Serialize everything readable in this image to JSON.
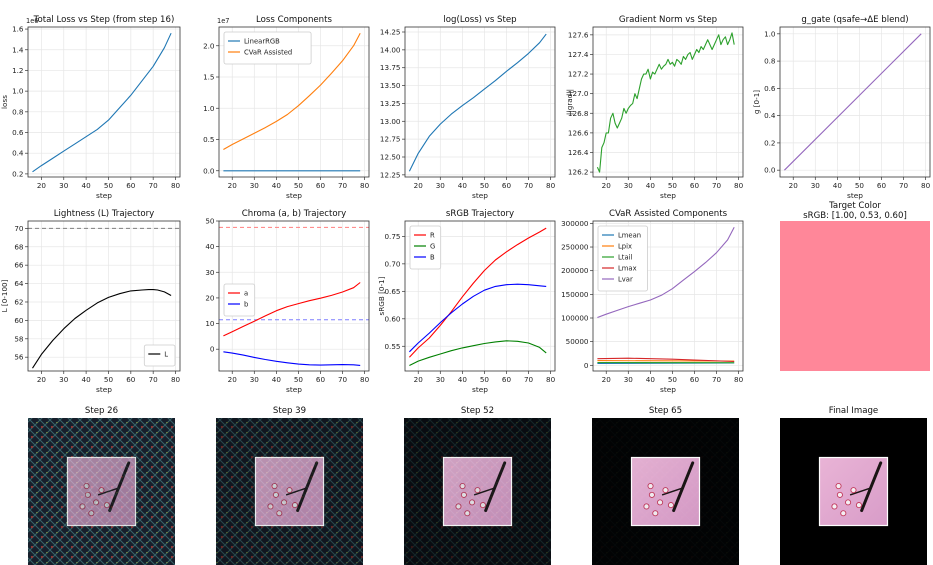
{
  "figure": {
    "plots": [
      {
        "id": "total-loss",
        "title": "Total Loss vs Step (from step 16)",
        "xlabel": "step",
        "ylabel": "loss",
        "xlim": [
          14,
          82
        ],
        "ylim": [
          0.17,
          1.62
        ],
        "xticks": [
          20,
          30,
          40,
          50,
          60,
          70,
          80
        ],
        "yticks": [
          0.2,
          0.4,
          0.6,
          0.8,
          1.0,
          1.2,
          1.4,
          1.6
        ],
        "ytick_labels": [
          "0.2",
          "0.4",
          "0.6",
          "0.8",
          "1.0",
          "1.2",
          "1.4",
          "1.6"
        ],
        "offset_label": "1e6",
        "legend": null,
        "series": [
          {
            "name": "loss",
            "color": "#1f77b4",
            "x": [
              16,
              20,
              25,
              30,
              35,
              40,
              45,
              50,
              55,
              60,
              65,
              70,
              75,
              78
            ],
            "y": [
              0.22,
              0.28,
              0.35,
              0.42,
              0.49,
              0.56,
              0.63,
              0.72,
              0.84,
              0.96,
              1.1,
              1.24,
              1.42,
              1.56
            ]
          }
        ],
        "hlines": []
      },
      {
        "id": "loss-components",
        "title": "Loss Components",
        "xlabel": "step",
        "ylabel": "",
        "xlim": [
          14,
          82
        ],
        "ylim": [
          -0.1,
          2.3
        ],
        "xticks": [
          20,
          30,
          40,
          50,
          60,
          70,
          80
        ],
        "yticks": [
          0.0,
          0.5,
          1.0,
          1.5,
          2.0
        ],
        "ytick_labels": [
          "0.0",
          "0.5",
          "1.0",
          "1.5",
          "2.0"
        ],
        "offset_label": "1e7",
        "legend": "top-left",
        "series": [
          {
            "name": "LinearRGB",
            "color": "#1f77b4",
            "x": [
              16,
              78
            ],
            "y": [
              0.0,
              0.0
            ]
          },
          {
            "name": "CVaR Assisted",
            "color": "#ff7f0e",
            "x": [
              16,
              20,
              25,
              30,
              35,
              40,
              45,
              50,
              55,
              60,
              65,
              70,
              75,
              78
            ],
            "y": [
              0.34,
              0.42,
              0.51,
              0.6,
              0.69,
              0.79,
              0.9,
              1.04,
              1.2,
              1.37,
              1.56,
              1.76,
              2.0,
              2.2
            ]
          }
        ],
        "hlines": []
      },
      {
        "id": "log-loss",
        "title": "log(Loss) vs Step",
        "xlabel": "step",
        "ylabel": "",
        "xlim": [
          14,
          82
        ],
        "ylim": [
          12.22,
          14.32
        ],
        "xticks": [
          20,
          30,
          40,
          50,
          60,
          70,
          80
        ],
        "yticks": [
          12.25,
          12.5,
          12.75,
          13.0,
          13.25,
          13.5,
          13.75,
          14.0,
          14.25
        ],
        "ytick_labels": [
          "12.25",
          "12.50",
          "12.75",
          "13.00",
          "13.25",
          "13.50",
          "13.75",
          "14.00",
          "14.25"
        ],
        "offset_label": "",
        "legend": null,
        "series": [
          {
            "name": "log loss",
            "color": "#1f77b4",
            "x": [
              16,
              20,
              25,
              30,
              35,
              40,
              45,
              50,
              55,
              60,
              65,
              70,
              75,
              78
            ],
            "y": [
              12.3,
              12.55,
              12.79,
              12.96,
              13.1,
              13.22,
              13.33,
              13.45,
              13.57,
              13.7,
              13.82,
              13.95,
              14.1,
              14.22
            ]
          }
        ],
        "hlines": []
      },
      {
        "id": "grad-norm",
        "title": "Gradient Norm vs Step",
        "xlabel": "step",
        "ylabel": "||grad||",
        "xlim": [
          14,
          82
        ],
        "ylim": [
          126.15,
          127.68
        ],
        "xticks": [
          20,
          30,
          40,
          50,
          60,
          70,
          80
        ],
        "yticks": [
          126.2,
          126.4,
          126.6,
          126.8,
          127.0,
          127.2,
          127.4,
          127.6
        ],
        "ytick_labels": [
          "126.2",
          "126.4",
          "126.6",
          "126.8",
          "127.0",
          "127.2",
          "127.4",
          "127.6"
        ],
        "offset_label": "",
        "legend": null,
        "series": [
          {
            "name": "grad norm",
            "color": "#2ca02c",
            "x": [
              16,
              17,
              18,
              19,
              20,
              21,
              22,
              23,
              24,
              25,
              26,
              27,
              28,
              29,
              30,
              31,
              32,
              33,
              34,
              35,
              36,
              37,
              38,
              39,
              40,
              41,
              42,
              43,
              44,
              45,
              46,
              47,
              48,
              49,
              50,
              51,
              52,
              53,
              54,
              55,
              56,
              57,
              58,
              59,
              60,
              61,
              62,
              63,
              64,
              65,
              66,
              67,
              68,
              69,
              70,
              71,
              72,
              73,
              74,
              75,
              76,
              77,
              78
            ],
            "y": [
              126.25,
              126.2,
              126.45,
              126.5,
              126.6,
              126.6,
              126.75,
              126.8,
              126.7,
              126.65,
              126.7,
              126.75,
              126.85,
              126.8,
              126.85,
              126.88,
              126.9,
              127.0,
              126.95,
              127.05,
              127.15,
              127.2,
              127.2,
              127.25,
              127.15,
              127.22,
              127.2,
              127.25,
              127.3,
              127.25,
              127.28,
              127.3,
              127.35,
              127.3,
              127.32,
              127.28,
              127.35,
              127.33,
              127.3,
              127.38,
              127.35,
              127.4,
              127.42,
              127.35,
              127.4,
              127.45,
              127.42,
              127.48,
              127.45,
              127.5,
              127.55,
              127.5,
              127.45,
              127.5,
              127.55,
              127.6,
              127.5,
              127.55,
              127.58,
              127.5,
              127.55,
              127.62,
              127.5
            ]
          }
        ],
        "hlines": []
      },
      {
        "id": "g-gate",
        "title": "g_gate (qsafe→ΔE blend)",
        "xlabel": "step",
        "ylabel": "g [0-1]",
        "xlim": [
          14,
          82
        ],
        "ylim": [
          -0.05,
          1.05
        ],
        "xticks": [
          20,
          30,
          40,
          50,
          60,
          70,
          80
        ],
        "yticks": [
          0.0,
          0.2,
          0.4,
          0.6,
          0.8,
          1.0
        ],
        "ytick_labels": [
          "0.0",
          "0.2",
          "0.4",
          "0.6",
          "0.8",
          "1.0"
        ],
        "offset_label": "",
        "legend": null,
        "series": [
          {
            "name": "g_gate",
            "color": "#9467bd",
            "x": [
              16,
              78
            ],
            "y": [
              0.0,
              1.0
            ]
          }
        ],
        "hlines": []
      },
      {
        "id": "lightness",
        "title": "Lightness (L) Trajectory",
        "xlabel": "step",
        "ylabel": "L [0-100]",
        "xlim": [
          14,
          82
        ],
        "ylim": [
          54.5,
          70.8
        ],
        "xticks": [
          20,
          30,
          40,
          50,
          60,
          70,
          80
        ],
        "yticks": [
          56,
          58,
          60,
          62,
          64,
          66,
          68,
          70
        ],
        "ytick_labels": [
          "56",
          "58",
          "60",
          "62",
          "64",
          "66",
          "68",
          "70"
        ],
        "offset_label": "",
        "legend": "bottom-right",
        "series": [
          {
            "name": "L",
            "color": "#000000",
            "x": [
              16,
              20,
              25,
              30,
              35,
              40,
              45,
              50,
              55,
              60,
              65,
              68,
              70,
              72,
              75,
              78
            ],
            "y": [
              54.8,
              56.3,
              57.8,
              59.1,
              60.2,
              61.1,
              61.9,
              62.5,
              62.9,
              63.2,
              63.3,
              63.35,
              63.35,
              63.3,
              63.1,
              62.7
            ]
          }
        ],
        "hlines": [
          {
            "y": 70,
            "color": "#7f7f7f"
          }
        ]
      },
      {
        "id": "chroma",
        "title": "Chroma (a, b) Trajectory",
        "xlabel": "step",
        "ylabel": "",
        "xlim": [
          14,
          82
        ],
        "ylim": [
          -8.5,
          50
        ],
        "xticks": [
          20,
          30,
          40,
          50,
          60,
          70,
          80
        ],
        "yticks": [
          0,
          10,
          20,
          30,
          40,
          50
        ],
        "ytick_labels": [
          "0",
          "10",
          "20",
          "30",
          "40",
          "50"
        ],
        "offset_label": "",
        "legend": "mid-left",
        "series": [
          {
            "name": "a",
            "color": "#ff0000",
            "x": [
              16,
              20,
              25,
              30,
              35,
              40,
              45,
              50,
              55,
              60,
              65,
              70,
              75,
              78
            ],
            "y": [
              5.2,
              6.8,
              8.9,
              10.9,
              13.0,
              15.0,
              16.6,
              17.8,
              18.9,
              19.9,
              21.0,
              22.3,
              24.0,
              26.0
            ]
          },
          {
            "name": "b",
            "color": "#0000ff",
            "x": [
              16,
              20,
              25,
              30,
              35,
              40,
              45,
              50,
              55,
              60,
              65,
              70,
              75,
              78
            ],
            "y": [
              -1.0,
              -1.5,
              -2.3,
              -3.2,
              -4.0,
              -4.7,
              -5.3,
              -5.8,
              -6.1,
              -6.2,
              -6.1,
              -6.0,
              -6.1,
              -6.3
            ]
          }
        ],
        "hlines": [
          {
            "y": 47.5,
            "color": "#ff7f7f"
          },
          {
            "y": 11.5,
            "color": "#7f7fff"
          }
        ]
      },
      {
        "id": "srgb",
        "title": "sRGB Trajectory",
        "xlabel": "step",
        "ylabel": "sRGB [0-1]",
        "xlim": [
          14,
          82
        ],
        "ylim": [
          0.505,
          0.778
        ],
        "xticks": [
          20,
          30,
          40,
          50,
          60,
          70,
          80
        ],
        "yticks": [
          0.55,
          0.6,
          0.65,
          0.7,
          0.75
        ],
        "ytick_labels": [
          "0.55",
          "0.60",
          "0.65",
          "0.70",
          "0.75"
        ],
        "offset_label": "",
        "legend": "top-left",
        "series": [
          {
            "name": "R",
            "color": "#ff0000",
            "x": [
              16,
              20,
              25,
              30,
              35,
              40,
              45,
              50,
              55,
              60,
              65,
              70,
              75,
              78
            ],
            "y": [
              0.53,
              0.547,
              0.565,
              0.588,
              0.613,
              0.64,
              0.665,
              0.688,
              0.707,
              0.722,
              0.735,
              0.747,
              0.758,
              0.765
            ]
          },
          {
            "name": "G",
            "color": "#008000",
            "x": [
              16,
              20,
              25,
              30,
              35,
              40,
              45,
              50,
              55,
              60,
              65,
              70,
              75,
              78
            ],
            "y": [
              0.515,
              0.523,
              0.53,
              0.536,
              0.542,
              0.547,
              0.551,
              0.555,
              0.558,
              0.56,
              0.559,
              0.556,
              0.548,
              0.538
            ]
          },
          {
            "name": "B",
            "color": "#0000ff",
            "x": [
              16,
              20,
              25,
              30,
              35,
              40,
              45,
              50,
              55,
              60,
              65,
              70,
              75,
              78
            ],
            "y": [
              0.54,
              0.556,
              0.574,
              0.593,
              0.611,
              0.627,
              0.641,
              0.652,
              0.659,
              0.662,
              0.663,
              0.662,
              0.66,
              0.659
            ]
          }
        ],
        "hlines": []
      },
      {
        "id": "cvar",
        "title": "CVaR Assisted Components",
        "xlabel": "step",
        "ylabel": "",
        "xlim": [
          14,
          82
        ],
        "ylim": [
          -12000,
          305000
        ],
        "xticks": [
          20,
          30,
          40,
          50,
          60,
          70,
          80
        ],
        "yticks": [
          0,
          50000,
          100000,
          150000,
          200000,
          250000,
          300000
        ],
        "ytick_labels": [
          "0",
          "50000",
          "100000",
          "150000",
          "200000",
          "250000",
          "300000"
        ],
        "offset_label": "",
        "legend": "top-left",
        "series": [
          {
            "name": "Lmean",
            "color": "#1f77b4",
            "x": [
              16,
              78
            ],
            "y": [
              4000,
              5000
            ]
          },
          {
            "name": "Lpix",
            "color": "#ff7f0e",
            "x": [
              16,
              78
            ],
            "y": [
              10000,
              9000
            ]
          },
          {
            "name": "Ltail",
            "color": "#2ca02c",
            "x": [
              16,
              78
            ],
            "y": [
              6000,
              5500
            ]
          },
          {
            "name": "Lmax",
            "color": "#d62728",
            "x": [
              16,
              30,
              50,
              78
            ],
            "y": [
              14000,
              15000,
              13000,
              8000
            ]
          },
          {
            "name": "Lvar",
            "color": "#9467bd",
            "x": [
              16,
              20,
              25,
              30,
              35,
              40,
              45,
              50,
              55,
              60,
              65,
              70,
              75,
              78
            ],
            "y": [
              101000,
              108000,
              116000,
              124000,
              131000,
              138000,
              148000,
              162000,
              180000,
              198000,
              217000,
              238000,
              265000,
              292000
            ]
          }
        ],
        "hlines": []
      }
    ],
    "target": {
      "title_line1": "Target Color",
      "title_line2": "sRGB: [1.00, 0.53, 0.60]",
      "swatch_color": "#ff8799"
    },
    "images": [
      {
        "title": "Step 26",
        "noise": 0.9
      },
      {
        "title": "Step 39",
        "noise": 0.65
      },
      {
        "title": "Step 52",
        "noise": 0.35
      },
      {
        "title": "Step 65",
        "noise": 0.08
      },
      {
        "title": "Final Image",
        "noise": 0.0
      }
    ]
  }
}
